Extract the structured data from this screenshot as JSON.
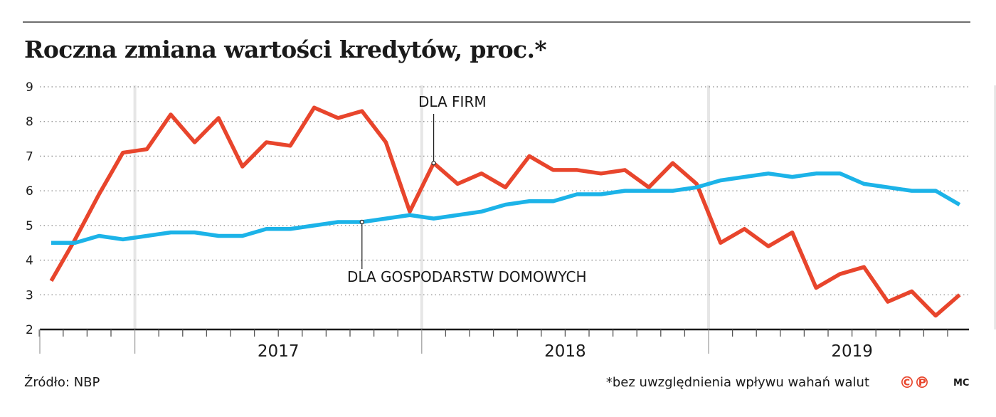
{
  "chart_data": {
    "type": "line",
    "title": "Roczna zmiana wartości kredytów, proc.*",
    "ylim": [
      2,
      9
    ],
    "yticks": [
      "2",
      "3",
      "4",
      "5",
      "6",
      "7",
      "8",
      "9"
    ],
    "x_start": "2016-09",
    "x_end": "2020-04",
    "x_year_labels": [
      "2017",
      "2018",
      "2019"
    ],
    "grid": "horizontal dotted",
    "series": [
      {
        "name": "DLA FIRM",
        "color": "#e8452c",
        "points": [
          [
            "2016-09",
            3.4
          ],
          [
            "2016-10",
            4.6
          ],
          [
            "2016-11",
            5.9
          ],
          [
            "2016-12",
            7.1
          ],
          [
            "2017-01",
            7.2
          ],
          [
            "2017-02",
            8.2
          ],
          [
            "2017-03",
            7.4
          ],
          [
            "2017-04",
            8.1
          ],
          [
            "2017-05",
            6.7
          ],
          [
            "2017-06",
            7.4
          ],
          [
            "2017-07",
            7.3
          ],
          [
            "2017-08",
            8.4
          ],
          [
            "2017-09",
            8.1
          ],
          [
            "2017-10",
            8.3
          ],
          [
            "2017-11",
            7.4
          ],
          [
            "2017-12",
            5.4
          ],
          [
            "2018-01",
            6.8
          ],
          [
            "2018-02",
            6.2
          ],
          [
            "2018-03",
            6.5
          ],
          [
            "2018-04",
            6.1
          ],
          [
            "2018-05",
            7.0
          ],
          [
            "2018-06",
            6.6
          ],
          [
            "2018-07",
            6.6
          ],
          [
            "2018-08",
            6.5
          ],
          [
            "2018-09",
            6.6
          ],
          [
            "2018-10",
            6.1
          ],
          [
            "2018-11",
            6.8
          ],
          [
            "2018-12",
            6.2
          ],
          [
            "2019-01",
            4.5
          ],
          [
            "2019-02",
            4.9
          ],
          [
            "2019-03",
            4.4
          ],
          [
            "2019-04",
            4.8
          ],
          [
            "2019-05",
            3.2
          ],
          [
            "2019-06",
            3.6
          ],
          [
            "2019-07",
            3.8
          ],
          [
            "2019-08",
            2.8
          ],
          [
            "2019-09",
            3.1
          ],
          [
            "2019-10",
            2.4
          ],
          [
            "2019-11",
            3.0
          ]
        ]
      },
      {
        "name": "DLA GOSPODARSTW DOMOWYCH",
        "color": "#1cb3e8",
        "points": [
          [
            "2016-09",
            4.5
          ],
          [
            "2016-10",
            4.5
          ],
          [
            "2016-11",
            4.7
          ],
          [
            "2016-12",
            4.6
          ],
          [
            "2017-01",
            4.7
          ],
          [
            "2017-02",
            4.8
          ],
          [
            "2017-03",
            4.8
          ],
          [
            "2017-04",
            4.7
          ],
          [
            "2017-05",
            4.7
          ],
          [
            "2017-06",
            4.9
          ],
          [
            "2017-07",
            4.9
          ],
          [
            "2017-08",
            5.0
          ],
          [
            "2017-09",
            5.1
          ],
          [
            "2017-10",
            5.1
          ],
          [
            "2017-11",
            5.2
          ],
          [
            "2017-12",
            5.3
          ],
          [
            "2018-01",
            5.2
          ],
          [
            "2018-02",
            5.3
          ],
          [
            "2018-03",
            5.4
          ],
          [
            "2018-04",
            5.6
          ],
          [
            "2018-05",
            5.7
          ],
          [
            "2018-06",
            5.7
          ],
          [
            "2018-07",
            5.9
          ],
          [
            "2018-08",
            5.9
          ],
          [
            "2018-09",
            6.0
          ],
          [
            "2018-10",
            6.0
          ],
          [
            "2018-11",
            6.0
          ],
          [
            "2018-12",
            6.1
          ],
          [
            "2019-01",
            6.3
          ],
          [
            "2019-02",
            6.4
          ],
          [
            "2019-03",
            6.5
          ],
          [
            "2019-04",
            6.4
          ],
          [
            "2019-05",
            6.5
          ],
          [
            "2019-06",
            6.5
          ],
          [
            "2019-07",
            6.2
          ],
          [
            "2019-08",
            6.1
          ],
          [
            "2019-09",
            6.0
          ],
          [
            "2019-10",
            6.0
          ],
          [
            "2019-11",
            5.6
          ]
        ]
      }
    ]
  },
  "footer": {
    "source": "Źródło: NBP",
    "footnote": "*bez uwzględnienia wpływu wahań walut",
    "logo": "©℗",
    "author": "MC"
  }
}
